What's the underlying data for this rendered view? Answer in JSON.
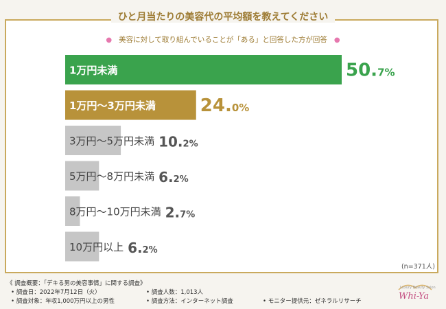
{
  "chart_data": {
    "type": "bar",
    "orientation": "horizontal",
    "title": "ひと月当たりの美容代の平均額を教えてください",
    "subtitle": "美容に対して取り組んでいることが「ある」と回答した方が回答",
    "categories": [
      "1万円未満",
      "1万円～3万円未満",
      "3万円～5万円未満",
      "5万円～8万円未満",
      "8万円～10万円未満",
      "10万円以上"
    ],
    "values": [
      50.7,
      24.0,
      10.2,
      6.2,
      2.7,
      6.2
    ],
    "value_labels": [
      {
        "num": "50.",
        "dec": "7%"
      },
      {
        "num": "24.",
        "dec": "0%"
      },
      {
        "num": "10.",
        "dec": "2%"
      },
      {
        "num": "6.",
        "dec": "2%"
      },
      {
        "num": "2.",
        "dec": "7%"
      },
      {
        "num": "6.",
        "dec": "2%"
      }
    ],
    "colors": [
      "#3aa34d",
      "#b8923a",
      "#c6c6c6",
      "#c6c6c6",
      "#c6c6c6",
      "#c6c6c6"
    ],
    "label_colors": [
      "#3aa34d",
      "#b8923a",
      "#555555",
      "#555555",
      "#555555",
      "#555555"
    ],
    "xlim": [
      0,
      50.7
    ],
    "note": "(n=371人)"
  },
  "footer": {
    "overview": "《 調査概要：「デキる男の美容事情」に関する調査》",
    "date": "• 調査日：2022年7月12日（火）",
    "count": "• 調査人数：1,013人",
    "target": "• 調査対象：年収1,000万円以上の男性",
    "method": "• 調査方法：インターネット調査",
    "provider": "• モニター提供元：ゼネラルリサーチ"
  },
  "logo": {
    "tiny": "Luxury Beauty Salon",
    "brand": "Whi-Ya"
  }
}
